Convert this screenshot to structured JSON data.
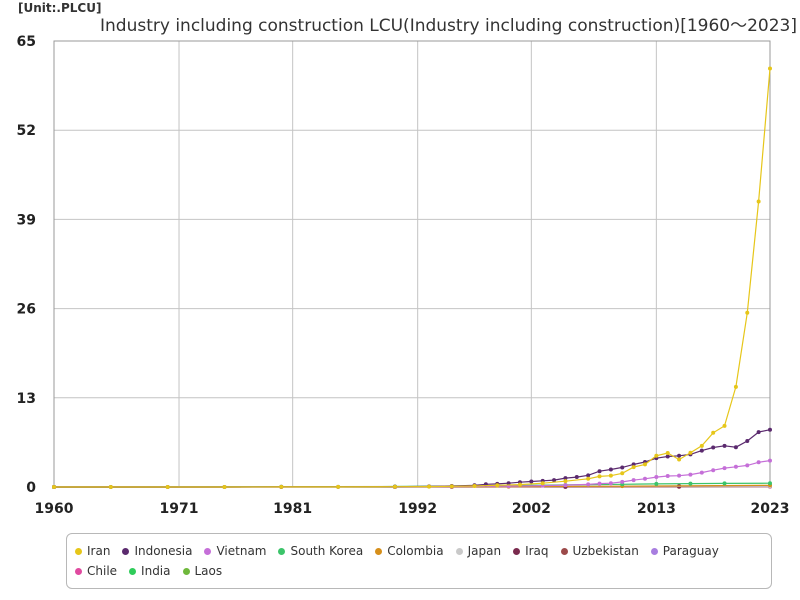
{
  "header": {
    "unit": "[Unit:.PLCU]",
    "title": "Industry including construction LCU(Industry including construction)[1960～2023]"
  },
  "chart_data": {
    "type": "line",
    "title": "Industry including construction LCU(Industry including construction)[1960～2023]",
    "unit": "[Unit:.PLCU]",
    "xlabel": "",
    "ylabel": "",
    "xlim": [
      1960,
      2023
    ],
    "ylim": [
      0,
      65
    ],
    "x_ticks": [
      1960,
      1971,
      1981,
      1992,
      2002,
      2013,
      2023
    ],
    "y_ticks": [
      0,
      13,
      26,
      39,
      52,
      65
    ],
    "grid": true,
    "legend_position": "bottom",
    "series": [
      {
        "name": "Iran",
        "color": "#e6c619",
        "x": [
          1960,
          1965,
          1970,
          1975,
          1980,
          1985,
          1990,
          1993,
          1995,
          1997,
          1999,
          2001,
          2003,
          2005,
          2007,
          2008,
          2009,
          2010,
          2011,
          2012,
          2013,
          2014,
          2015,
          2016,
          2017,
          2018,
          2019,
          2020,
          2021,
          2022,
          2023
        ],
        "y": [
          0,
          0,
          0,
          0,
          0.01,
          0.02,
          0.04,
          0.06,
          0.1,
          0.15,
          0.25,
          0.35,
          0.55,
          0.85,
          1.2,
          1.55,
          1.65,
          2.0,
          2.9,
          3.3,
          4.55,
          4.95,
          4.0,
          5.0,
          6.0,
          7.9,
          8.9,
          14.6,
          25.4,
          41.6,
          61.0
        ]
      },
      {
        "name": "Indonesia",
        "color": "#5b2a6e",
        "x": [
          1960,
          1965,
          1970,
          1975,
          1980,
          1985,
          1990,
          1993,
          1995,
          1997,
          1998,
          1999,
          2000,
          2001,
          2002,
          2003,
          2004,
          2005,
          2006,
          2007,
          2008,
          2009,
          2010,
          2011,
          2012,
          2013,
          2014,
          2015,
          2016,
          2017,
          2018,
          2019,
          2020,
          2021,
          2022,
          2023
        ],
        "y": [
          0,
          0,
          0,
          0,
          0.01,
          0.02,
          0.05,
          0.1,
          0.15,
          0.25,
          0.4,
          0.45,
          0.55,
          0.7,
          0.8,
          0.9,
          1.0,
          1.3,
          1.45,
          1.7,
          2.3,
          2.55,
          2.85,
          3.3,
          3.65,
          4.2,
          4.45,
          4.55,
          4.75,
          5.3,
          5.75,
          6.0,
          5.8,
          6.7,
          8.0,
          8.35
        ]
      },
      {
        "name": "Vietnam",
        "color": "#c56fd8",
        "x": [
          1960,
          1980,
          1990,
          1995,
          2000,
          2003,
          2005,
          2007,
          2008,
          2009,
          2010,
          2011,
          2012,
          2013,
          2014,
          2015,
          2016,
          2017,
          2018,
          2019,
          2020,
          2021,
          2022,
          2023
        ],
        "y": [
          0,
          0,
          0.02,
          0.05,
          0.12,
          0.2,
          0.28,
          0.38,
          0.5,
          0.55,
          0.75,
          1.0,
          1.2,
          1.45,
          1.6,
          1.65,
          1.8,
          2.1,
          2.45,
          2.75,
          2.95,
          3.15,
          3.6,
          3.85
        ]
      },
      {
        "name": "South Korea",
        "color": "#3cc46a",
        "x": [
          1960,
          1980,
          1990,
          2000,
          2005,
          2010,
          2013,
          2016,
          2019,
          2023
        ],
        "y": [
          0,
          0.02,
          0.08,
          0.2,
          0.3,
          0.4,
          0.45,
          0.5,
          0.52,
          0.55
        ]
      },
      {
        "name": "Colombia",
        "color": "#d68f1a",
        "x": [
          1960,
          1990,
          2000,
          2010,
          2023
        ],
        "y": [
          0,
          0.01,
          0.05,
          0.12,
          0.25
        ]
      },
      {
        "name": "Japan",
        "color": "#c9c9c9",
        "x": [
          1960,
          1980,
          2000,
          2023
        ],
        "y": [
          0.01,
          0.05,
          0.1,
          0.12
        ]
      },
      {
        "name": "Iraq",
        "color": "#7a2a4e",
        "x": [
          1960,
          1990,
          2005,
          2015,
          2023
        ],
        "y": [
          0,
          0.01,
          0.05,
          0.12,
          0.2
        ]
      },
      {
        "name": "Uzbekistan",
        "color": "#9c4a4a",
        "x": [
          1960,
          1995,
          2005,
          2015,
          2023
        ],
        "y": [
          0,
          0,
          0.02,
          0.06,
          0.15
        ]
      },
      {
        "name": "Paraguay",
        "color": "#a87ee0",
        "x": [
          1960,
          1990,
          2005,
          2015,
          2023
        ],
        "y": [
          0,
          0.01,
          0.03,
          0.07,
          0.12
        ]
      },
      {
        "name": "Chile",
        "color": "#e04aa0",
        "x": [
          1960,
          1990,
          2005,
          2015,
          2023
        ],
        "y": [
          0,
          0.01,
          0.02,
          0.04,
          0.06
        ]
      },
      {
        "name": "India",
        "color": "#2fcc5a",
        "x": [
          1960,
          1990,
          2005,
          2015,
          2023
        ],
        "y": [
          0,
          0.01,
          0.03,
          0.06,
          0.1
        ]
      },
      {
        "name": "Laos",
        "color": "#6fb83c",
        "x": [
          1960,
          1990,
          2005,
          2015,
          2023
        ],
        "y": [
          0,
          0,
          0.01,
          0.03,
          0.05
        ]
      }
    ]
  }
}
